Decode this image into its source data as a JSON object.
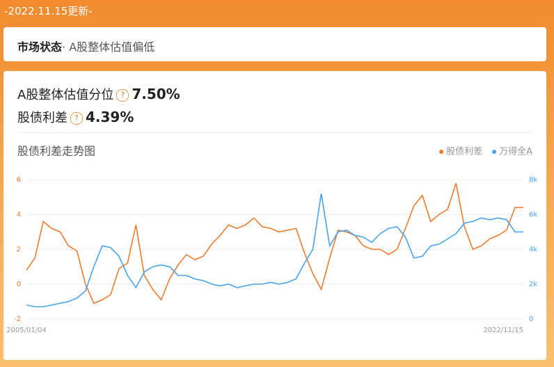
{
  "header": {
    "update": "-2022.11.15更新-"
  },
  "status": {
    "label": "市场状态",
    "text": "· A股整体估值偏低"
  },
  "summary": {
    "rows": [
      {
        "label": "A股整体估值分位",
        "help": "?",
        "value": "7.50%"
      },
      {
        "label": "股债利差",
        "help": "?",
        "value": "4.39%"
      }
    ]
  },
  "chart_data": {
    "type": "line",
    "title": "股债利差走势图",
    "legend": "top-right",
    "grid": true,
    "categories": [
      "2005/01/04",
      null,
      null,
      null,
      null,
      null,
      null,
      null,
      null,
      null,
      null,
      null,
      null,
      null,
      null,
      null,
      null,
      null,
      null,
      null,
      null,
      null,
      null,
      null,
      null,
      null,
      null,
      null,
      null,
      null,
      null,
      null,
      null,
      null,
      null,
      null,
      null,
      null,
      null,
      null,
      null,
      null,
      null,
      null,
      null,
      null,
      null,
      null,
      null,
      null,
      null,
      null,
      null,
      null,
      null,
      null,
      null,
      null,
      null,
      "2022/11/15"
    ],
    "ylim": [
      -2,
      6
    ],
    "yticks": [
      -2,
      0,
      2,
      4,
      6
    ],
    "y2lim": [
      0,
      8000
    ],
    "y2ticks": [
      0,
      {
        "value": 2000,
        "label": "2k"
      },
      {
        "value": 4000,
        "label": "4k"
      },
      {
        "value": 6000,
        "label": "6k"
      },
      {
        "value": 8000,
        "label": "8k"
      }
    ],
    "series": [
      {
        "name": "股债利差",
        "color": "#ee7a2e",
        "values": [
          0.8,
          1.5,
          3.6,
          3.2,
          3.0,
          2.2,
          1.9,
          0.0,
          -1.1,
          -0.9,
          -0.6,
          0.9,
          1.2,
          3.4,
          0.5,
          -0.3,
          -0.9,
          0.3,
          1.1,
          1.7,
          1.4,
          1.6,
          2.3,
          2.8,
          3.4,
          3.2,
          3.4,
          3.8,
          3.3,
          3.2,
          3.0,
          3.1,
          3.2,
          1.8,
          0.6,
          -0.3,
          1.5,
          3.1,
          3.0,
          2.8,
          2.2,
          2.0,
          2.0,
          1.7,
          2.0,
          3.2,
          4.5,
          5.1,
          3.6,
          4.0,
          4.3,
          5.8,
          3.3,
          2.0,
          2.2,
          2.6,
          2.8,
          3.1,
          4.4,
          4.4
        ]
      },
      {
        "name": "万得全A",
        "color": "#45a3f0",
        "axis": "y2",
        "values": [
          800,
          700,
          700,
          800,
          900,
          1000,
          1200,
          1600,
          3000,
          4200,
          4100,
          3600,
          2500,
          1800,
          2700,
          3000,
          3100,
          3000,
          2500,
          2500,
          2300,
          2200,
          2000,
          1900,
          2000,
          1800,
          1900,
          2000,
          2000,
          2100,
          2000,
          2100,
          2300,
          3200,
          4000,
          7200,
          4200,
          5000,
          5100,
          4800,
          4700,
          4400,
          4900,
          5200,
          5300,
          4700,
          3500,
          3600,
          4200,
          4300,
          4600,
          4900,
          5500,
          5600,
          5800,
          5700,
          5800,
          5700,
          5000,
          5000
        ]
      }
    ]
  }
}
